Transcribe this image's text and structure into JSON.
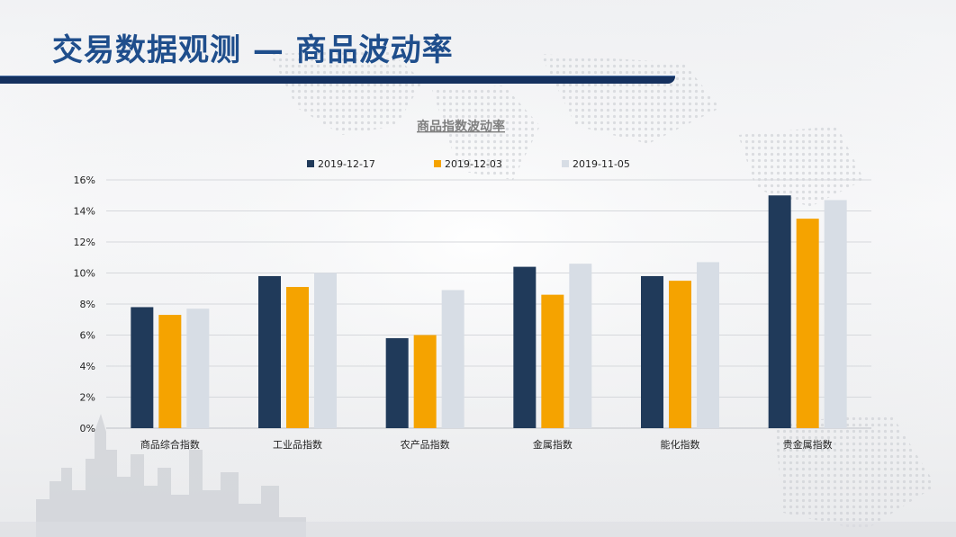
{
  "page": {
    "title": "交易数据观测 — 商品波动率"
  },
  "colors": {
    "title_text": "#1f4e8c",
    "title_bar": "#15315f"
  },
  "chart_data": {
    "type": "bar",
    "title": "商品指数波动率",
    "categories": [
      "商品综合指数",
      "工业品指数",
      "农产品指数",
      "金属指数",
      "能化指数",
      "贵金属指数"
    ],
    "series": [
      {
        "name": "2019-12-17",
        "color": "#203a5a",
        "values": [
          7.8,
          9.8,
          5.8,
          10.4,
          9.8,
          15.0
        ]
      },
      {
        "name": "2019-12-03",
        "color": "#f5a300",
        "values": [
          7.3,
          9.1,
          6.0,
          8.6,
          9.5,
          13.5
        ]
      },
      {
        "name": "2019-11-05",
        "color": "#d7dde5",
        "values": [
          7.7,
          10.0,
          8.9,
          10.6,
          10.7,
          14.7
        ]
      }
    ],
    "yticks": [
      "0%",
      "2%",
      "4%",
      "6%",
      "8%",
      "10%",
      "12%",
      "14%",
      "16%"
    ],
    "ylim": [
      0,
      16
    ],
    "grid": true,
    "legend_position": "top"
  }
}
